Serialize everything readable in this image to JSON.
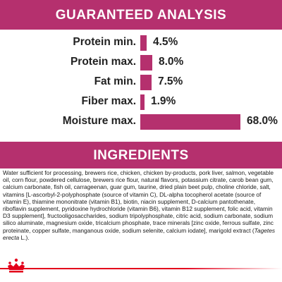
{
  "guaranteed_analysis": {
    "title": "GUARANTEED ANALYSIS",
    "rows": [
      {
        "label": "Protein min.",
        "value": "4.5%",
        "amount": 4.5
      },
      {
        "label": "Protein max.",
        "value": "8.0%",
        "amount": 8.0
      },
      {
        "label": "Fat min.",
        "value": "7.5%",
        "amount": 7.5
      },
      {
        "label": "Fiber max.",
        "value": "1.9%",
        "amount": 1.9
      },
      {
        "label": "Moisture max.",
        "value": "68.0%",
        "amount": 68.0
      }
    ]
  },
  "ingredients": {
    "title": "INGREDIENTS",
    "text": "Water sufficient for processing, brewers rice, chicken, chicken by-products, pork liver, salmon, vegetable oil, corn flour, powdered cellulose, brewers rice flour, natural flavors, potassium citrate, carob bean gum, calcium carbonate, fish oil, carrageenan, guar gum, taurine, dried plain beet pulp, choline chloride, salt, vitamins [L-ascorbyl-2-polyphosphate (source of vitamin C), DL-alpha tocopherol acetate (source of vitamin E), thiamine mononitrate (vitamin B1), biotin, niacin supplement, D-calcium pantothenate, riboflavin supplement, pyridoxine hydrochloride (vitamin B6), vitamin B12 supplement, folic acid, vitamin D3 supplement], fructooligosaccharides, sodium tripolyphosphate, citric acid, sodium carbonate, sodium silico aluminate, magnesium oxide, tricalcium phosphate, trace minerals [zinc oxide, ferrous sulfate, zinc proteinate, copper sulfate, manganous oxide, sodium selenite, calcium iodate], marigold extract (",
    "italic": "Tagetes erecta",
    "suffix": " L.)."
  },
  "brand": {
    "logo_icon": "crown-icon",
    "accent": "#b5306e",
    "footer_red": "#e3001b"
  }
}
